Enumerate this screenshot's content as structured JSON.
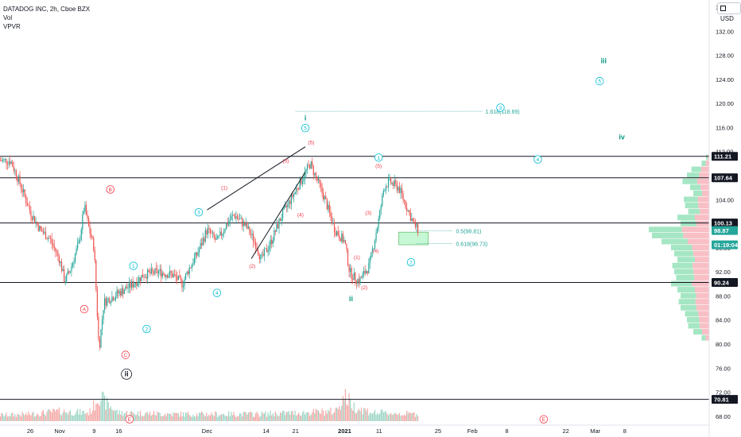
{
  "header": {
    "symbol": "DATADOG INC, 2h, Cboe BZX",
    "indicator_1": "Vol",
    "indicator_2": "VPVR",
    "currency": "USD"
  },
  "colors": {
    "up": "#26a69a",
    "down": "#ef5350",
    "wave_main": "#089981",
    "wave_cyan": "#00bcd4",
    "wave_red": "#f23645",
    "wave_pink": "#e57373",
    "vp_green": "#a5e6c4",
    "vp_red": "#f8bfc5"
  },
  "chart_data": {
    "type": "candlestick",
    "ylim": [
      66,
      136
    ],
    "y_ticks": [
      68,
      72,
      76,
      80,
      84,
      88,
      92,
      96,
      100,
      104,
      108,
      112,
      116,
      120,
      124,
      128,
      132,
      136
    ],
    "x_ticks": [
      {
        "label": "26",
        "x": 0
      },
      {
        "label": "Nov",
        "x": 6
      },
      {
        "label": "9",
        "x": 13
      },
      {
        "label": "16",
        "x": 18
      },
      {
        "label": "Dec",
        "x": 36
      },
      {
        "label": "14",
        "x": 48
      },
      {
        "label": "21",
        "x": 54
      },
      {
        "label": "2021",
        "x": 64
      },
      {
        "label": "11",
        "x": 71
      },
      {
        "label": "25",
        "x": 83
      },
      {
        "label": "Feb",
        "x": 90
      },
      {
        "label": "8",
        "x": 97
      },
      {
        "label": "22",
        "x": 109
      },
      {
        "label": "Mar",
        "x": 115
      },
      {
        "label": "8",
        "x": 121
      }
    ],
    "close_path": [
      [
        -4,
        110.5
      ],
      [
        -2,
        106.5
      ],
      [
        0,
        102
      ],
      [
        2,
        99
      ],
      [
        4,
        97.5
      ],
      [
        6,
        94
      ],
      [
        7,
        90.5
      ],
      [
        8,
        92
      ],
      [
        10,
        97
      ],
      [
        11,
        103
      ],
      [
        12,
        99
      ],
      [
        13,
        96
      ],
      [
        14,
        79
      ],
      [
        15,
        87
      ],
      [
        17,
        88
      ],
      [
        19,
        89
      ],
      [
        21,
        90
      ],
      [
        23,
        91.5
      ],
      [
        26,
        92
      ],
      [
        29,
        91.5
      ],
      [
        31,
        90
      ],
      [
        32,
        92
      ],
      [
        34,
        95
      ],
      [
        36,
        99
      ],
      [
        38,
        97
      ],
      [
        40,
        100
      ],
      [
        41.5,
        101.5
      ],
      [
        44,
        99.5
      ],
      [
        46,
        96.5
      ],
      [
        47,
        94
      ],
      [
        49,
        97
      ],
      [
        51,
        101
      ],
      [
        53,
        104
      ],
      [
        55,
        107
      ],
      [
        56,
        108.5
      ],
      [
        57,
        110
      ],
      [
        58,
        108
      ],
      [
        60,
        104
      ],
      [
        62,
        99
      ],
      [
        64,
        97
      ],
      [
        65,
        92
      ],
      [
        66,
        91
      ],
      [
        67,
        90.5
      ],
      [
        69,
        93
      ],
      [
        70,
        97
      ],
      [
        71,
        101
      ],
      [
        72,
        106
      ],
      [
        73,
        107
      ],
      [
        75,
        106
      ],
      [
        76,
        104
      ],
      [
        78,
        100
      ],
      [
        79,
        98.87
      ]
    ],
    "volume_path": [
      [
        -4,
        0.22
      ],
      [
        0,
        0.25
      ],
      [
        6,
        0.35
      ],
      [
        12,
        0.3
      ],
      [
        13,
        0.55
      ],
      [
        14,
        1.0
      ],
      [
        15,
        0.7
      ],
      [
        18,
        0.3
      ],
      [
        30,
        0.25
      ],
      [
        36,
        0.25
      ],
      [
        46,
        0.25
      ],
      [
        55,
        0.3
      ],
      [
        62,
        0.35
      ],
      [
        64,
        0.9
      ],
      [
        66,
        0.5
      ],
      [
        70,
        0.3
      ],
      [
        79,
        0.25
      ]
    ],
    "horizontal_levels": [
      111.21,
      107.64,
      100.13,
      90.24,
      70.81
    ],
    "right_labels": [
      {
        "value": 111.21,
        "text": "111.21",
        "style": "dark"
      },
      {
        "value": 107.64,
        "text": "107.64",
        "style": "dark"
      },
      {
        "value": 100.13,
        "text": "100.13",
        "style": "dark"
      },
      {
        "value": 98.87,
        "text": "98.87",
        "style": "green"
      },
      {
        "value": 96.5,
        "text": "01:19:04",
        "style": "green"
      },
      {
        "value": 90.24,
        "text": "90.24",
        "style": "dark"
      },
      {
        "value": 70.81,
        "text": "70.81",
        "style": "dark"
      }
    ],
    "fib_levels": [
      {
        "text": "1.618(118.69)",
        "value": 118.69,
        "x0": 54,
        "x1": 92
      },
      {
        "text": "0.5(98.81)",
        "value": 98.81,
        "x0": 78.5,
        "x1": 86
      },
      {
        "text": "0.618(96.73)",
        "value": 96.73,
        "x0": 78.5,
        "x1": 86
      }
    ],
    "fib_zone": {
      "x0": 75,
      "x1": 81,
      "y0": 98.6,
      "y1": 96.5
    },
    "trend_lines": [
      {
        "x0": 36,
        "y0": 102.3,
        "x1": 56,
        "y1": 112.8
      },
      {
        "x0": 45,
        "y0": 94.2,
        "x1": 56,
        "y1": 108.6
      }
    ],
    "vp_profile": [
      [
        111,
        0.05
      ],
      [
        110,
        0.12
      ],
      [
        109,
        0.28
      ],
      [
        108,
        0.35
      ],
      [
        107,
        0.42
      ],
      [
        106,
        0.3
      ],
      [
        105,
        0.25
      ],
      [
        104,
        0.4
      ],
      [
        103,
        0.38
      ],
      [
        102,
        0.33
      ],
      [
        101,
        0.5
      ],
      [
        100,
        0.45
      ],
      [
        99,
        0.95
      ],
      [
        98,
        0.9
      ],
      [
        97,
        0.75
      ],
      [
        96,
        0.6
      ],
      [
        95,
        0.55
      ],
      [
        94,
        0.5
      ],
      [
        93,
        0.58
      ],
      [
        92,
        0.55
      ],
      [
        91,
        0.52
      ],
      [
        90,
        0.6
      ],
      [
        89,
        0.5
      ],
      [
        88,
        0.45
      ],
      [
        87,
        0.48
      ],
      [
        86,
        0.45
      ],
      [
        85,
        0.38
      ],
      [
        84,
        0.35
      ],
      [
        83,
        0.33
      ],
      [
        82,
        0.25
      ],
      [
        81,
        0.12
      ]
    ],
    "wave_labels": [
      {
        "text": "i",
        "x": 56,
        "y": 117.6,
        "color": "wave_main",
        "style": "plain-bold"
      },
      {
        "text": "5",
        "x": 56,
        "y": 115.9,
        "color": "wave_cyan",
        "style": "circle"
      },
      {
        "text": "(5)",
        "x": 57.2,
        "y": 113.6,
        "color": "wave_red",
        "style": "plain"
      },
      {
        "text": "(3)",
        "x": 52,
        "y": 110.6,
        "color": "wave_red",
        "style": "plain"
      },
      {
        "text": "(1)",
        "x": 39.5,
        "y": 106.1,
        "color": "wave_red",
        "style": "plain"
      },
      {
        "text": "(4)",
        "x": 55,
        "y": 101.6,
        "color": "wave_red",
        "style": "plain"
      },
      {
        "text": "(2)",
        "x": 45.2,
        "y": 93.1,
        "color": "wave_red",
        "style": "plain"
      },
      {
        "text": "3",
        "x": 34.3,
        "y": 101.9,
        "color": "wave_cyan",
        "style": "circle"
      },
      {
        "text": "4",
        "x": 38,
        "y": 88.5,
        "color": "wave_cyan",
        "style": "circle"
      },
      {
        "text": "1",
        "x": 21,
        "y": 93.0,
        "color": "wave_cyan",
        "style": "circle"
      },
      {
        "text": "2",
        "x": 23.7,
        "y": 82.5,
        "color": "wave_cyan",
        "style": "circle"
      },
      {
        "text": "B",
        "x": 16.3,
        "y": 105.7,
        "color": "wave_red",
        "style": "circle"
      },
      {
        "text": "A",
        "x": 11,
        "y": 85.8,
        "color": "wave_red",
        "style": "circle"
      },
      {
        "text": "C",
        "x": 19.4,
        "y": 78.2,
        "color": "wave_red",
        "style": "circle"
      },
      {
        "text": "ii",
        "x": 19.6,
        "y": 75.0,
        "color": "dark",
        "style": "circle-bold"
      },
      {
        "text": "E",
        "x": 20.2,
        "y": 67.5,
        "color": "wave_red",
        "style": "circle"
      },
      {
        "text": "ii",
        "x": 65.3,
        "y": 87.5,
        "color": "wave_main",
        "style": "plain-bold"
      },
      {
        "text": "(2)",
        "x": 68,
        "y": 89.5,
        "color": "wave_red",
        "style": "plain"
      },
      {
        "text": "(1)",
        "x": 66.5,
        "y": 94.5,
        "color": "wave_red",
        "style": "plain"
      },
      {
        "text": "(4)",
        "x": 70.3,
        "y": 95.6,
        "color": "wave_red",
        "style": "plain"
      },
      {
        "text": "(3)",
        "x": 68.8,
        "y": 101.9,
        "color": "wave_red",
        "style": "plain"
      },
      {
        "text": "1",
        "x": 70.9,
        "y": 111.0,
        "color": "wave_cyan",
        "style": "circle"
      },
      {
        "text": "(5)",
        "x": 70.9,
        "y": 109.7,
        "color": "wave_red",
        "style": "plain"
      },
      {
        "text": "2",
        "x": 77.5,
        "y": 93.6,
        "color": "wave_cyan",
        "style": "circle"
      },
      {
        "text": "3",
        "x": 95.7,
        "y": 119.3,
        "color": "wave_cyan",
        "style": "circle"
      },
      {
        "text": "4",
        "x": 103.3,
        "y": 110.7,
        "color": "wave_cyan",
        "style": "circle"
      },
      {
        "text": "iii",
        "x": 116.7,
        "y": 127.1,
        "color": "wave_main",
        "style": "plain-bold"
      },
      {
        "text": "5",
        "x": 115.9,
        "y": 123.7,
        "color": "wave_cyan",
        "style": "circle"
      },
      {
        "text": "iv",
        "x": 120.4,
        "y": 114.4,
        "color": "wave_main",
        "style": "plain-bold"
      },
      {
        "text": "E",
        "x": 104.5,
        "y": 67.5,
        "color": "wave_red",
        "style": "circle"
      }
    ]
  }
}
